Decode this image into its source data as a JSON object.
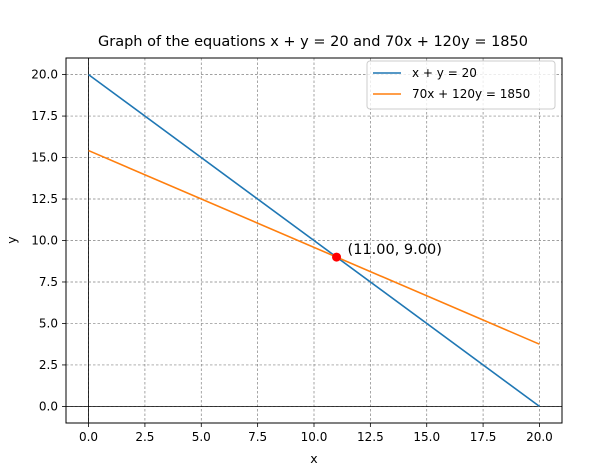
{
  "chart_data": {
    "type": "line",
    "title": "Graph of the equations x + y = 20 and 70x + 120y = 1850",
    "xlabel": "x",
    "ylabel": "y",
    "xlim": [
      -1,
      21
    ],
    "ylim": [
      -1,
      21
    ],
    "xticks": [
      0,
      2.5,
      5,
      7.5,
      10,
      12.5,
      15,
      17.5,
      20
    ],
    "yticks": [
      0,
      2.5,
      5,
      7.5,
      10,
      12.5,
      15,
      17.5,
      20
    ],
    "xtick_labels": [
      "0.0",
      "2.5",
      "5.0",
      "7.5",
      "10.0",
      "12.5",
      "15.0",
      "17.5",
      "20.0"
    ],
    "ytick_labels": [
      "0.0",
      "2.5",
      "5.0",
      "7.5",
      "10.0",
      "12.5",
      "15.0",
      "17.5",
      "20.0"
    ],
    "grid": true,
    "legend_position": "top-right",
    "series": [
      {
        "name": "x + y = 20",
        "color": "#1f77b4",
        "x": [
          0,
          20
        ],
        "y": [
          20,
          0
        ]
      },
      {
        "name": "70x + 120y = 1850",
        "color": "#ff7f0e",
        "x": [
          0,
          20
        ],
        "y": [
          15.42,
          3.75
        ]
      }
    ],
    "reference_lines": [
      {
        "axis": "x",
        "value": 0,
        "color": "#000000"
      },
      {
        "axis": "y",
        "value": 0,
        "color": "#000000"
      }
    ],
    "point": {
      "x": 11,
      "y": 9,
      "color": "#ff0000",
      "label": "(11.00, 9.00)"
    }
  }
}
